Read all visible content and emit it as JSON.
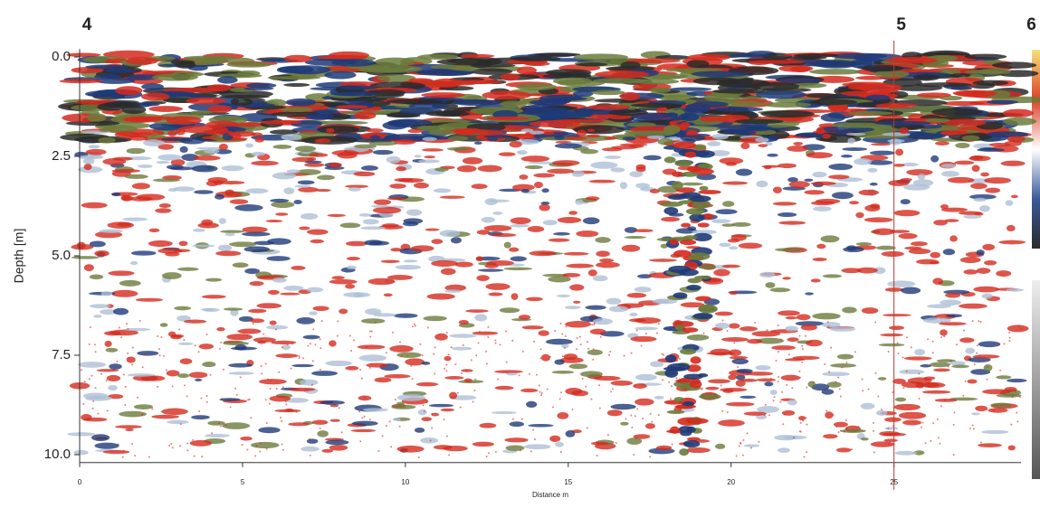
{
  "chart_data": {
    "type": "radargram",
    "y_label": "Depth [m]",
    "x_label": "Distance m",
    "xlim": [
      0,
      28.9
    ],
    "ylim": [
      -0.2,
      10.2
    ],
    "y_inverted": true,
    "xticks": [
      0,
      5,
      10,
      15,
      20,
      25
    ],
    "yticks": [
      {
        "value": 0,
        "label": "0.0"
      },
      2.5,
      {
        "value": 5,
        "label": "5.0"
      },
      7.5,
      {
        "value": 10,
        "label": "10.0"
      }
    ],
    "annotations": [
      {
        "label": "4",
        "x": 0
      },
      {
        "label": "5",
        "x": 25
      },
      {
        "label": "6",
        "x": 29
      }
    ]
  }
}
